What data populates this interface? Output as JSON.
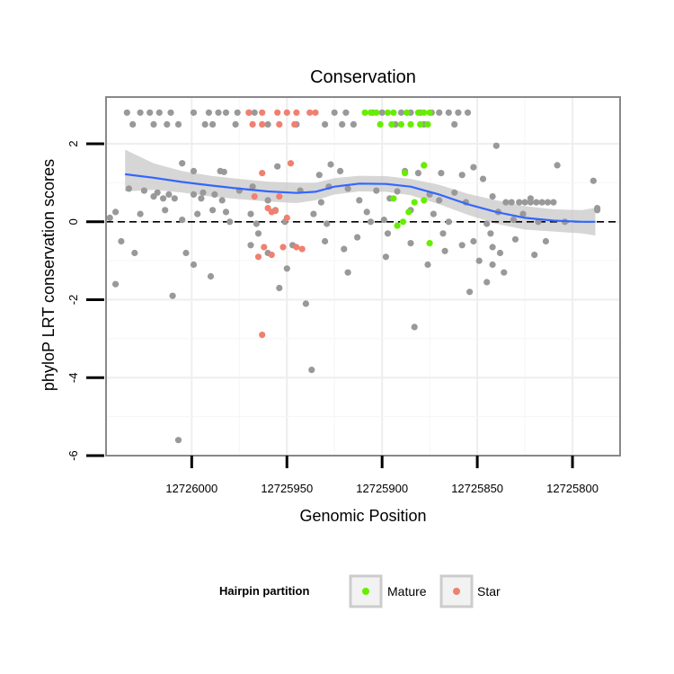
{
  "chart_data": {
    "type": "scatter",
    "title": "Conservation",
    "xlabel": "Genomic Position",
    "ylabel": "phyloP LRT conservation scores",
    "x_reversed": true,
    "xlim": [
      12725775,
      12726045
    ],
    "ylim": [
      -6.0,
      3.2
    ],
    "xticks": [
      12726000,
      12725950,
      12725900,
      12725850,
      12725800
    ],
    "xtick_labels": [
      "12726000",
      "12725950",
      "12725900",
      "12725850",
      "12725800"
    ],
    "yticks": [
      -6,
      -4,
      -2,
      0,
      2
    ],
    "ytick_labels": [
      "-6",
      "-4",
      "-2",
      "0",
      "2"
    ],
    "grid": true,
    "reference_line": {
      "y": 0,
      "style": "dashed"
    },
    "colors": {
      "Other": "#999999",
      "Mature": "#66ee00",
      "Star": "#f08070",
      "smooth": "#3366ff",
      "band": "#c8c8c8"
    },
    "legend": {
      "title": "Hairpin partition",
      "position": "bottom",
      "entries": [
        {
          "label": "Mature",
          "color": "#66ee00"
        },
        {
          "label": "Star",
          "color": "#f08070"
        }
      ]
    },
    "series": [
      {
        "name": "Other",
        "color": "#999999",
        "points": [
          [
            12726034,
            2.8
          ],
          [
            12726027,
            2.8
          ],
          [
            12726022,
            2.8
          ],
          [
            12726017,
            2.8
          ],
          [
            12726011,
            2.8
          ],
          [
            12725999,
            2.8
          ],
          [
            12725991,
            2.8
          ],
          [
            12725986,
            2.8
          ],
          [
            12725982,
            2.8
          ],
          [
            12725976,
            2.8
          ],
          [
            12725970,
            2.8
          ],
          [
            12725967,
            2.8
          ],
          [
            12725925,
            2.8
          ],
          [
            12725919,
            2.8
          ],
          [
            12725905,
            2.8
          ],
          [
            12725900,
            2.8
          ],
          [
            12725890,
            2.8
          ],
          [
            12725885,
            2.8
          ],
          [
            12725880,
            2.8
          ],
          [
            12725874,
            2.8
          ],
          [
            12725870,
            2.8
          ],
          [
            12725865,
            2.8
          ],
          [
            12725860,
            2.8
          ],
          [
            12725855,
            2.8
          ],
          [
            12726031,
            2.5
          ],
          [
            12726020,
            2.5
          ],
          [
            12726013,
            2.5
          ],
          [
            12726007,
            2.5
          ],
          [
            12725993,
            2.5
          ],
          [
            12725989,
            2.5
          ],
          [
            12725977,
            2.5
          ],
          [
            12725960,
            2.5
          ],
          [
            12725945,
            2.5
          ],
          [
            12725930,
            2.5
          ],
          [
            12725921,
            2.5
          ],
          [
            12725915,
            2.5
          ],
          [
            12725893,
            2.5
          ],
          [
            12725878,
            2.5
          ],
          [
            12725862,
            2.5
          ],
          [
            12725840,
            1.95
          ],
          [
            12726005,
            1.5
          ],
          [
            12725955,
            1.42
          ],
          [
            12725927,
            1.47
          ],
          [
            12725878,
            1.45
          ],
          [
            12725808,
            1.45
          ],
          [
            12725852,
            1.4
          ],
          [
            12725999,
            1.3
          ],
          [
            12725985,
            1.3
          ],
          [
            12725983,
            1.28
          ],
          [
            12725933,
            1.2
          ],
          [
            12725922,
            1.3
          ],
          [
            12725888,
            1.3
          ],
          [
            12725881,
            1.25
          ],
          [
            12725869,
            1.25
          ],
          [
            12725858,
            1.2
          ],
          [
            12725847,
            1.1
          ],
          [
            12726033,
            0.85
          ],
          [
            12726025,
            0.8
          ],
          [
            12726018,
            0.75
          ],
          [
            12726012,
            0.7
          ],
          [
            12725999,
            0.7
          ],
          [
            12725994,
            0.75
          ],
          [
            12725988,
            0.7
          ],
          [
            12725975,
            0.8
          ],
          [
            12725968,
            0.9
          ],
          [
            12725943,
            0.8
          ],
          [
            12725928,
            0.9
          ],
          [
            12725918,
            0.85
          ],
          [
            12725903,
            0.8
          ],
          [
            12725892,
            0.78
          ],
          [
            12725875,
            0.7
          ],
          [
            12725862,
            0.75
          ],
          [
            12725842,
            0.65
          ],
          [
            12725822,
            0.6
          ],
          [
            12726020,
            0.65
          ],
          [
            12726015,
            0.6
          ],
          [
            12726009,
            0.6
          ],
          [
            12725995,
            0.6
          ],
          [
            12725984,
            0.55
          ],
          [
            12725960,
            0.55
          ],
          [
            12725932,
            0.5
          ],
          [
            12725912,
            0.55
          ],
          [
            12725896,
            0.6
          ],
          [
            12725870,
            0.55
          ],
          [
            12725856,
            0.5
          ],
          [
            12725835,
            0.5
          ],
          [
            12725832,
            0.5
          ],
          [
            12725828,
            0.5
          ],
          [
            12725825,
            0.5
          ],
          [
            12725822,
            0.5
          ],
          [
            12725819,
            0.5
          ],
          [
            12725816,
            0.5
          ],
          [
            12725813,
            0.5
          ],
          [
            12725810,
            0.5
          ],
          [
            12726040,
            0.25
          ],
          [
            12726027,
            0.2
          ],
          [
            12726014,
            0.3
          ],
          [
            12725997,
            0.2
          ],
          [
            12725989,
            0.3
          ],
          [
            12725982,
            0.25
          ],
          [
            12725969,
            0.2
          ],
          [
            12725956,
            0.3
          ],
          [
            12725936,
            0.2
          ],
          [
            12725908,
            0.25
          ],
          [
            12725885,
            0.3
          ],
          [
            12725873,
            0.2
          ],
          [
            12725839,
            0.25
          ],
          [
            12725826,
            0.2
          ],
          [
            12725787,
            0.3
          ],
          [
            12726043,
            0.1
          ],
          [
            12726005,
            0.05
          ],
          [
            12725980,
            0.0
          ],
          [
            12725966,
            -0.05
          ],
          [
            12725951,
            0.0
          ],
          [
            12725929,
            -0.05
          ],
          [
            12725906,
            0.0
          ],
          [
            12725899,
            0.05
          ],
          [
            12725865,
            0.0
          ],
          [
            12725845,
            -0.05
          ],
          [
            12725831,
            0.05
          ],
          [
            12725818,
            0.0
          ],
          [
            12725804,
            0.0
          ],
          [
            12726037,
            -0.5
          ],
          [
            12725965,
            -0.3
          ],
          [
            12725947,
            -0.6
          ],
          [
            12725930,
            -0.5
          ],
          [
            12725913,
            -0.4
          ],
          [
            12725897,
            -0.3
          ],
          [
            12725885,
            -0.55
          ],
          [
            12725868,
            -0.3
          ],
          [
            12725852,
            -0.5
          ],
          [
            12725843,
            -0.3
          ],
          [
            12725830,
            -0.45
          ],
          [
            12725814,
            -0.5
          ],
          [
            12726030,
            -0.8
          ],
          [
            12725969,
            -0.6
          ],
          [
            12725960,
            -0.8
          ],
          [
            12725920,
            -0.7
          ],
          [
            12725898,
            -0.9
          ],
          [
            12725867,
            -0.75
          ],
          [
            12725858,
            -0.6
          ],
          [
            12725842,
            -0.65
          ],
          [
            12725838,
            -0.8
          ],
          [
            12725820,
            -0.85
          ],
          [
            12726003,
            -0.8
          ],
          [
            12725999,
            -1.1
          ],
          [
            12725950,
            -1.2
          ],
          [
            12725918,
            -1.3
          ],
          [
            12725876,
            -1.1
          ],
          [
            12725849,
            -1.0
          ],
          [
            12725842,
            -1.1
          ],
          [
            12725836,
            -1.3
          ],
          [
            12725854,
            -1.8
          ],
          [
            12725845,
            -1.55
          ],
          [
            12725990,
            -1.4
          ],
          [
            12726040,
            -1.6
          ],
          [
            12725954,
            -1.7
          ],
          [
            12726010,
            -1.9
          ],
          [
            12725940,
            -2.1
          ],
          [
            12725883,
            -2.7
          ],
          [
            12725937,
            -3.8
          ],
          [
            12726007,
            -5.6
          ],
          [
            12725789,
            1.05
          ],
          [
            12725787,
            0.35
          ]
        ]
      },
      {
        "name": "Mature",
        "color": "#66ee00",
        "points": [
          [
            12725909,
            2.8
          ],
          [
            12725906,
            2.8
          ],
          [
            12725903,
            2.8
          ],
          [
            12725897,
            2.8
          ],
          [
            12725894,
            2.8
          ],
          [
            12725887,
            2.8
          ],
          [
            12725881,
            2.8
          ],
          [
            12725878,
            2.8
          ],
          [
            12725875,
            2.8
          ],
          [
            12725901,
            2.5
          ],
          [
            12725895,
            2.5
          ],
          [
            12725890,
            2.5
          ],
          [
            12725885,
            2.5
          ],
          [
            12725880,
            2.5
          ],
          [
            12725876,
            2.5
          ],
          [
            12725878,
            1.45
          ],
          [
            12725888,
            1.25
          ],
          [
            12725894,
            0.6
          ],
          [
            12725878,
            0.55
          ],
          [
            12725883,
            0.5
          ],
          [
            12725886,
            0.25
          ],
          [
            12725889,
            0.0
          ],
          [
            12725892,
            -0.1
          ],
          [
            12725875,
            -0.55
          ]
        ]
      },
      {
        "name": "Star",
        "color": "#f08070",
        "points": [
          [
            12725970,
            2.8
          ],
          [
            12725963,
            2.8
          ],
          [
            12725955,
            2.8
          ],
          [
            12725950,
            2.8
          ],
          [
            12725945,
            2.8
          ],
          [
            12725938,
            2.8
          ],
          [
            12725935,
            2.8
          ],
          [
            12725968,
            2.5
          ],
          [
            12725963,
            2.5
          ],
          [
            12725954,
            2.5
          ],
          [
            12725946,
            2.5
          ],
          [
            12725948,
            1.5
          ],
          [
            12725963,
            1.25
          ],
          [
            12725967,
            0.65
          ],
          [
            12725954,
            0.65
          ],
          [
            12725960,
            0.35
          ],
          [
            12725958,
            0.25
          ],
          [
            12725956,
            0.28
          ],
          [
            12725950,
            0.1
          ],
          [
            12725962,
            -0.65
          ],
          [
            12725958,
            -0.85
          ],
          [
            12725965,
            -0.9
          ],
          [
            12725952,
            -0.65
          ],
          [
            12725945,
            -0.65
          ],
          [
            12725942,
            -0.7
          ],
          [
            12725963,
            -2.9
          ]
        ]
      }
    ],
    "smooth": {
      "method": "loess",
      "color": "#3366ff",
      "x": [
        12726035,
        12726020,
        12726005,
        12725990,
        12725975,
        12725960,
        12725945,
        12725935,
        12725925,
        12725912,
        12725898,
        12725885,
        12725870,
        12725855,
        12725840,
        12725825,
        12725810,
        12725795,
        12725788
      ],
      "y": [
        1.22,
        1.13,
        1.02,
        0.93,
        0.85,
        0.78,
        0.74,
        0.77,
        0.9,
        0.98,
        0.97,
        0.9,
        0.7,
        0.45,
        0.25,
        0.1,
        0.03,
        0.0,
        0.0
      ],
      "ci_lower": [
        0.78,
        0.82,
        0.75,
        0.65,
        0.58,
        0.52,
        0.48,
        0.55,
        0.7,
        0.78,
        0.77,
        0.68,
        0.45,
        0.18,
        -0.05,
        -0.2,
        -0.25,
        -0.3,
        -0.35
      ],
      "ci_upper": [
        1.85,
        1.5,
        1.3,
        1.18,
        1.1,
        1.03,
        1.0,
        1.0,
        1.12,
        1.18,
        1.17,
        1.1,
        0.95,
        0.72,
        0.55,
        0.4,
        0.32,
        0.3,
        0.36
      ]
    }
  }
}
